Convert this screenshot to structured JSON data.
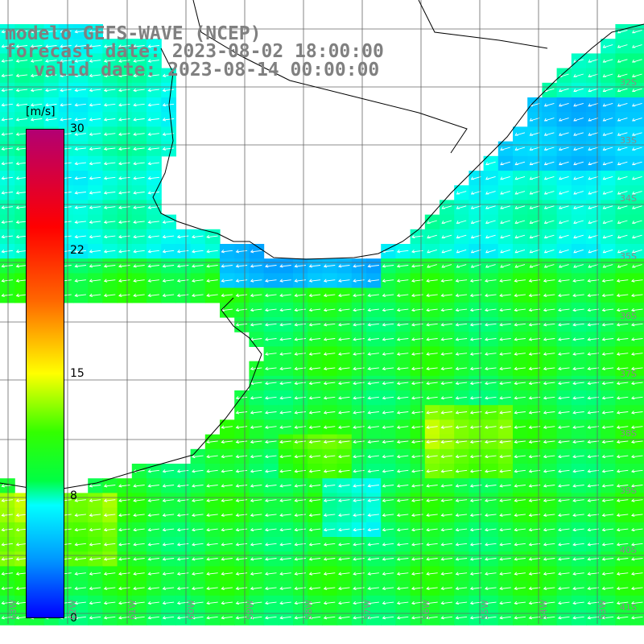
{
  "title": {
    "line1": "modelo GEFS-WAVE (NCEP)",
    "line2": "forecast date: 2023-08-02 18:00:00",
    "line3": "valid date: 2023-08-14 00:00:00"
  },
  "colorbar": {
    "unit": "[m/s]",
    "ticks": [
      "30",
      "22",
      "15",
      "8",
      "0"
    ],
    "tick_values": [
      30,
      22,
      15,
      8,
      0
    ],
    "range": [
      0,
      30
    ],
    "colors": [
      "#0000ff",
      "#0099ff",
      "#00ffff",
      "#00ff44",
      "#33ff00",
      "#ffff00",
      "#ff6600",
      "#ff0000",
      "#b20073"
    ]
  },
  "grid": {
    "lat_labels": [
      "32S",
      "33S",
      "34S",
      "35S",
      "36S",
      "37S",
      "38S",
      "39S",
      "40S",
      "41S"
    ],
    "lon_labels": [
      "63W",
      "62W",
      "61W",
      "60W",
      "59W",
      "58W",
      "57W",
      "56W",
      "55W",
      "54W",
      "53W"
    ]
  },
  "field": {
    "variable": "wind speed",
    "land_color": "#ffffff",
    "arrow_color": "#ffffff"
  }
}
